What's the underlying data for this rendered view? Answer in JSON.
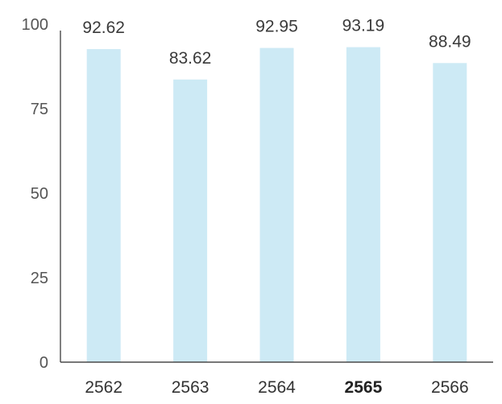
{
  "chart_data": {
    "type": "bar",
    "title": "",
    "xlabel": "",
    "ylabel": "",
    "categories": [
      "2562",
      "2563",
      "2564",
      "2565",
      "2566"
    ],
    "values": [
      92.62,
      83.62,
      92.95,
      93.19,
      88.49
    ],
    "value_labels": [
      "92.62",
      "83.62",
      "92.95",
      "93.19",
      "88.49"
    ],
    "ylim": [
      0,
      100
    ],
    "yticks": [
      0,
      25,
      50,
      75,
      100
    ],
    "ytick_labels": [
      "0",
      "25",
      "50",
      "75",
      "100"
    ],
    "grid": false,
    "legend": "none",
    "colors": {
      "bar": "#cdeaf5",
      "axis": "#4a4a4a",
      "tick_text": "#555555",
      "label_text": "#3a3a3a",
      "category_text": "#333333",
      "category_highlight": "#222222"
    },
    "highlight_category": "2565"
  }
}
